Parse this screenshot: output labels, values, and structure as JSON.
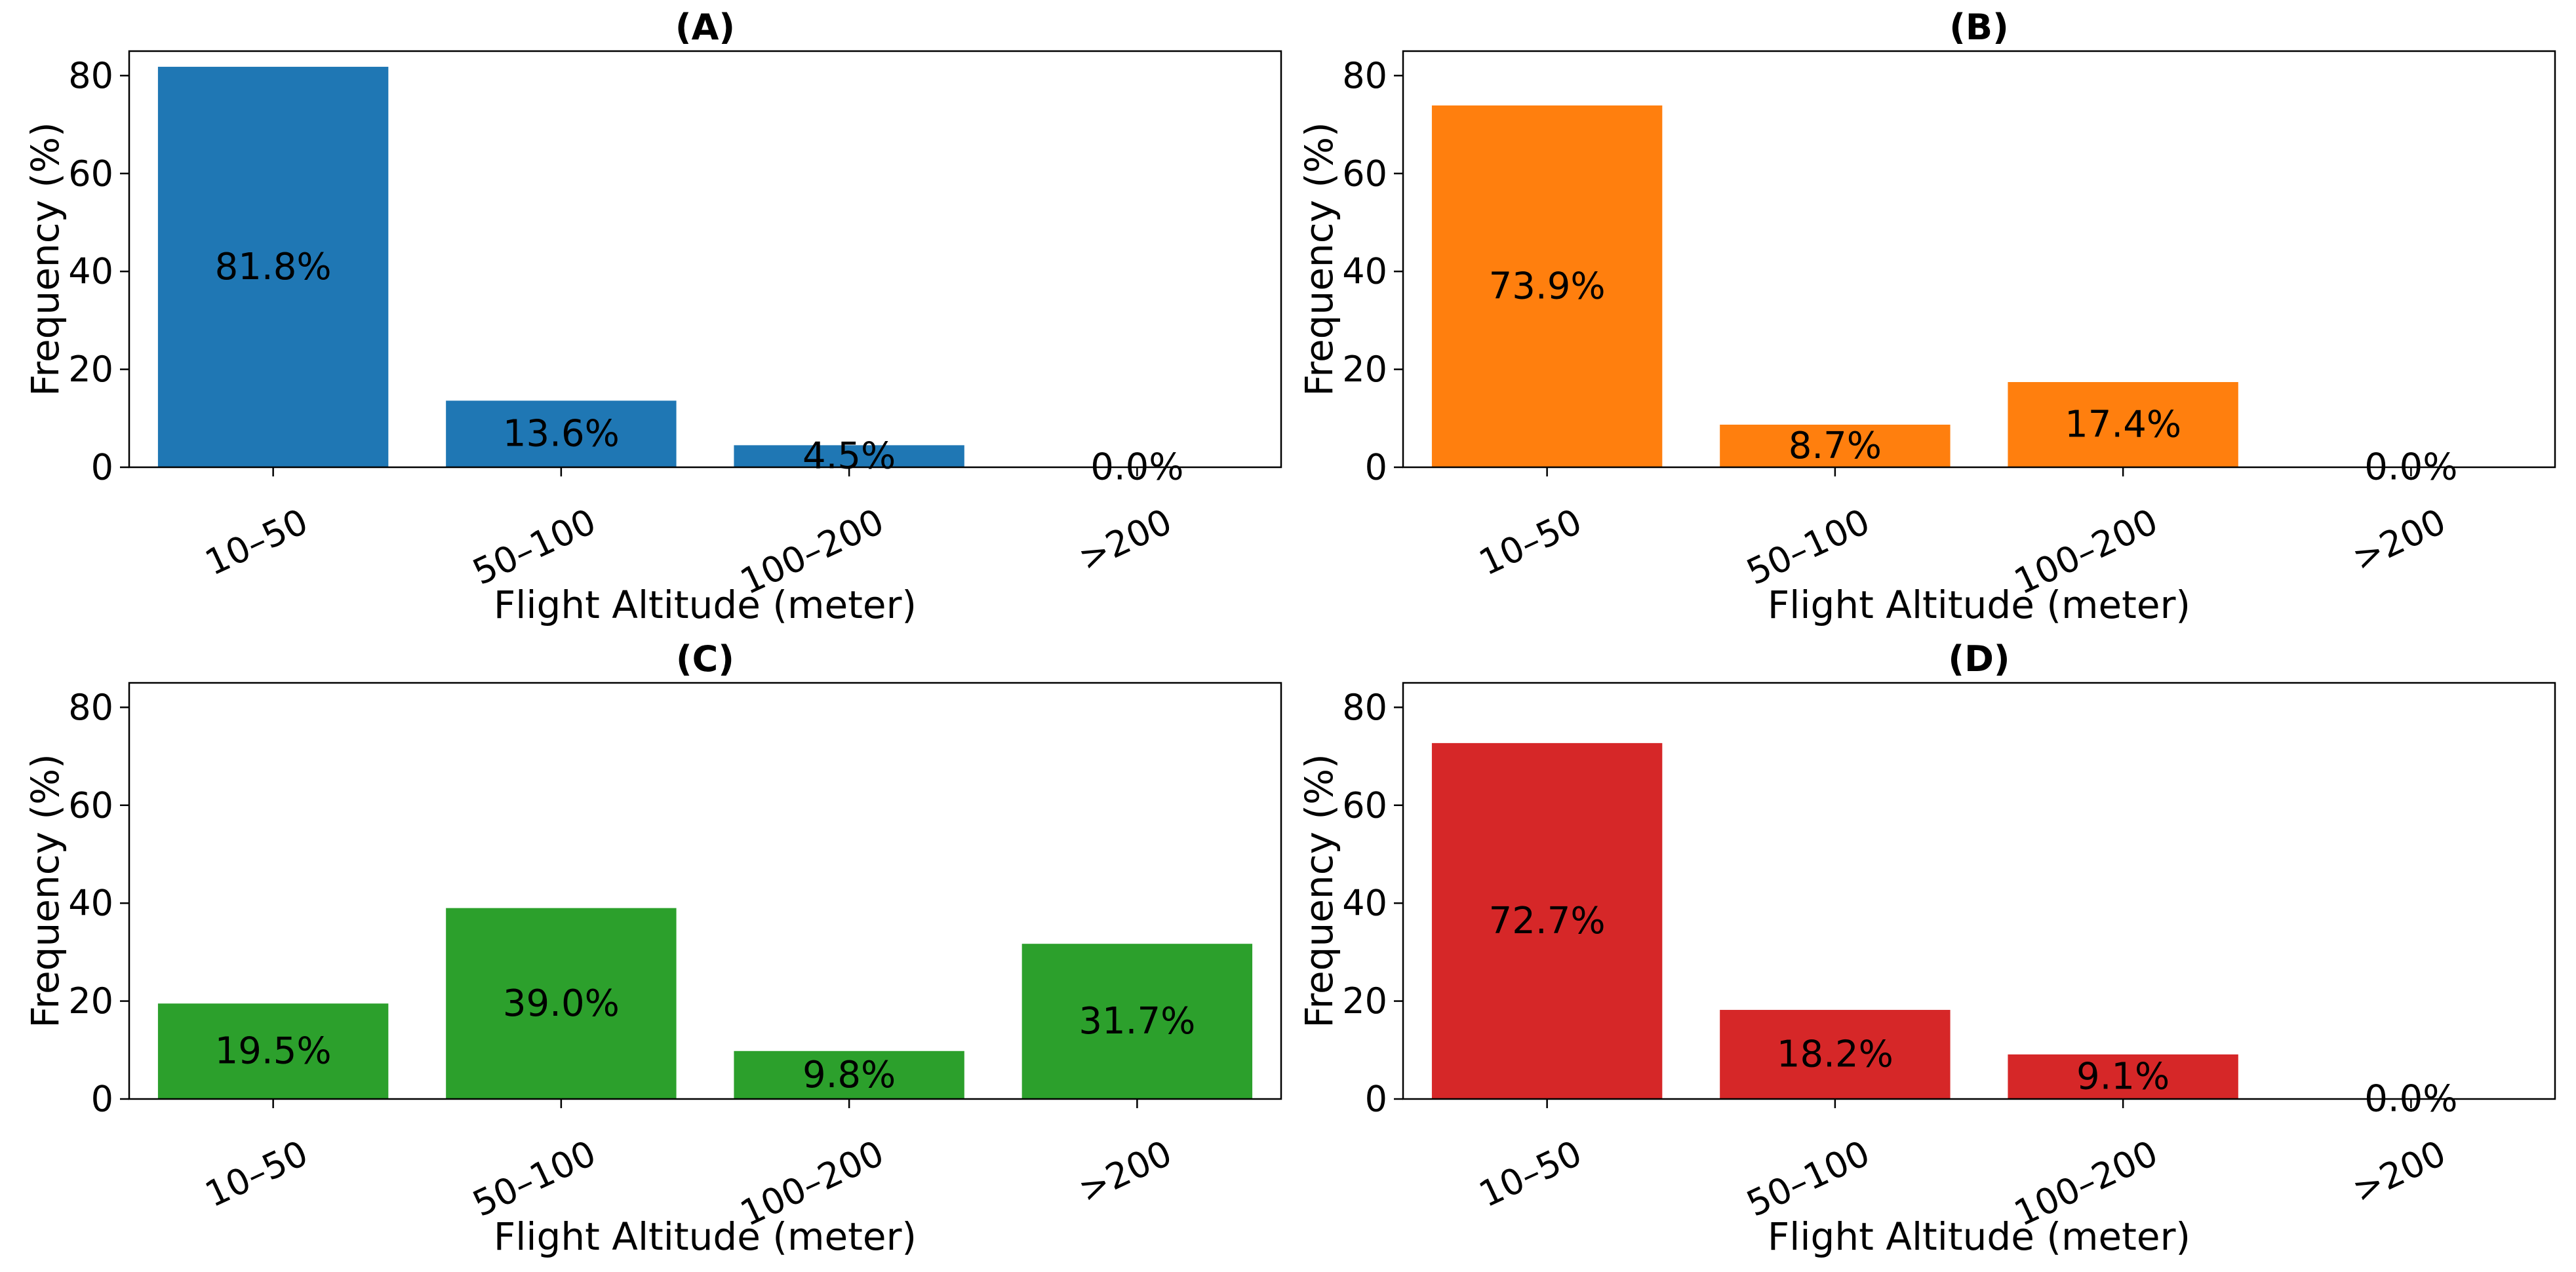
{
  "chart_data": [
    {
      "type": "bar",
      "panel": "A",
      "title": "(A)",
      "categories": [
        "10–50",
        "50–100",
        "100–200",
        ">200"
      ],
      "values": [
        81.8,
        13.6,
        4.5,
        0.0
      ],
      "labels": [
        "81.8%",
        "13.6%",
        "4.5%",
        "0.0%"
      ],
      "color": "#1f77b4",
      "xlabel": "Flight Altitude (meter)",
      "ylabel": "Frequency (%)",
      "yticks": [
        0,
        20,
        40,
        60,
        80
      ],
      "ylim": [
        0,
        85
      ]
    },
    {
      "type": "bar",
      "panel": "B",
      "title": "(B)",
      "categories": [
        "10–50",
        "50–100",
        "100–200",
        ">200"
      ],
      "values": [
        73.9,
        8.7,
        17.4,
        0.0
      ],
      "labels": [
        "73.9%",
        "8.7%",
        "17.4%",
        "0.0%"
      ],
      "color": "#ff7f0e",
      "xlabel": "Flight Altitude (meter)",
      "ylabel": "Frequency (%)",
      "yticks": [
        0,
        20,
        40,
        60,
        80
      ],
      "ylim": [
        0,
        85
      ]
    },
    {
      "type": "bar",
      "panel": "C",
      "title": "(C)",
      "categories": [
        "10–50",
        "50–100",
        "100–200",
        ">200"
      ],
      "values": [
        19.5,
        39.0,
        9.8,
        31.7
      ],
      "labels": [
        "19.5%",
        "39.0%",
        "9.8%",
        "31.7%"
      ],
      "color": "#2ca02c",
      "xlabel": "Flight Altitude (meter)",
      "ylabel": "Frequency (%)",
      "yticks": [
        0,
        20,
        40,
        60,
        80
      ],
      "ylim": [
        0,
        85
      ]
    },
    {
      "type": "bar",
      "panel": "D",
      "title": "(D)",
      "categories": [
        "10–50",
        "50–100",
        "100–200",
        ">200"
      ],
      "values": [
        72.7,
        18.2,
        9.1,
        0.0
      ],
      "labels": [
        "72.7%",
        "18.2%",
        "9.1%",
        "0.0%"
      ],
      "color": "#d62728",
      "xlabel": "Flight Altitude (meter)",
      "ylabel": "Frequency (%)",
      "yticks": [
        0,
        20,
        40,
        60,
        80
      ],
      "ylim": [
        0,
        85
      ]
    }
  ]
}
